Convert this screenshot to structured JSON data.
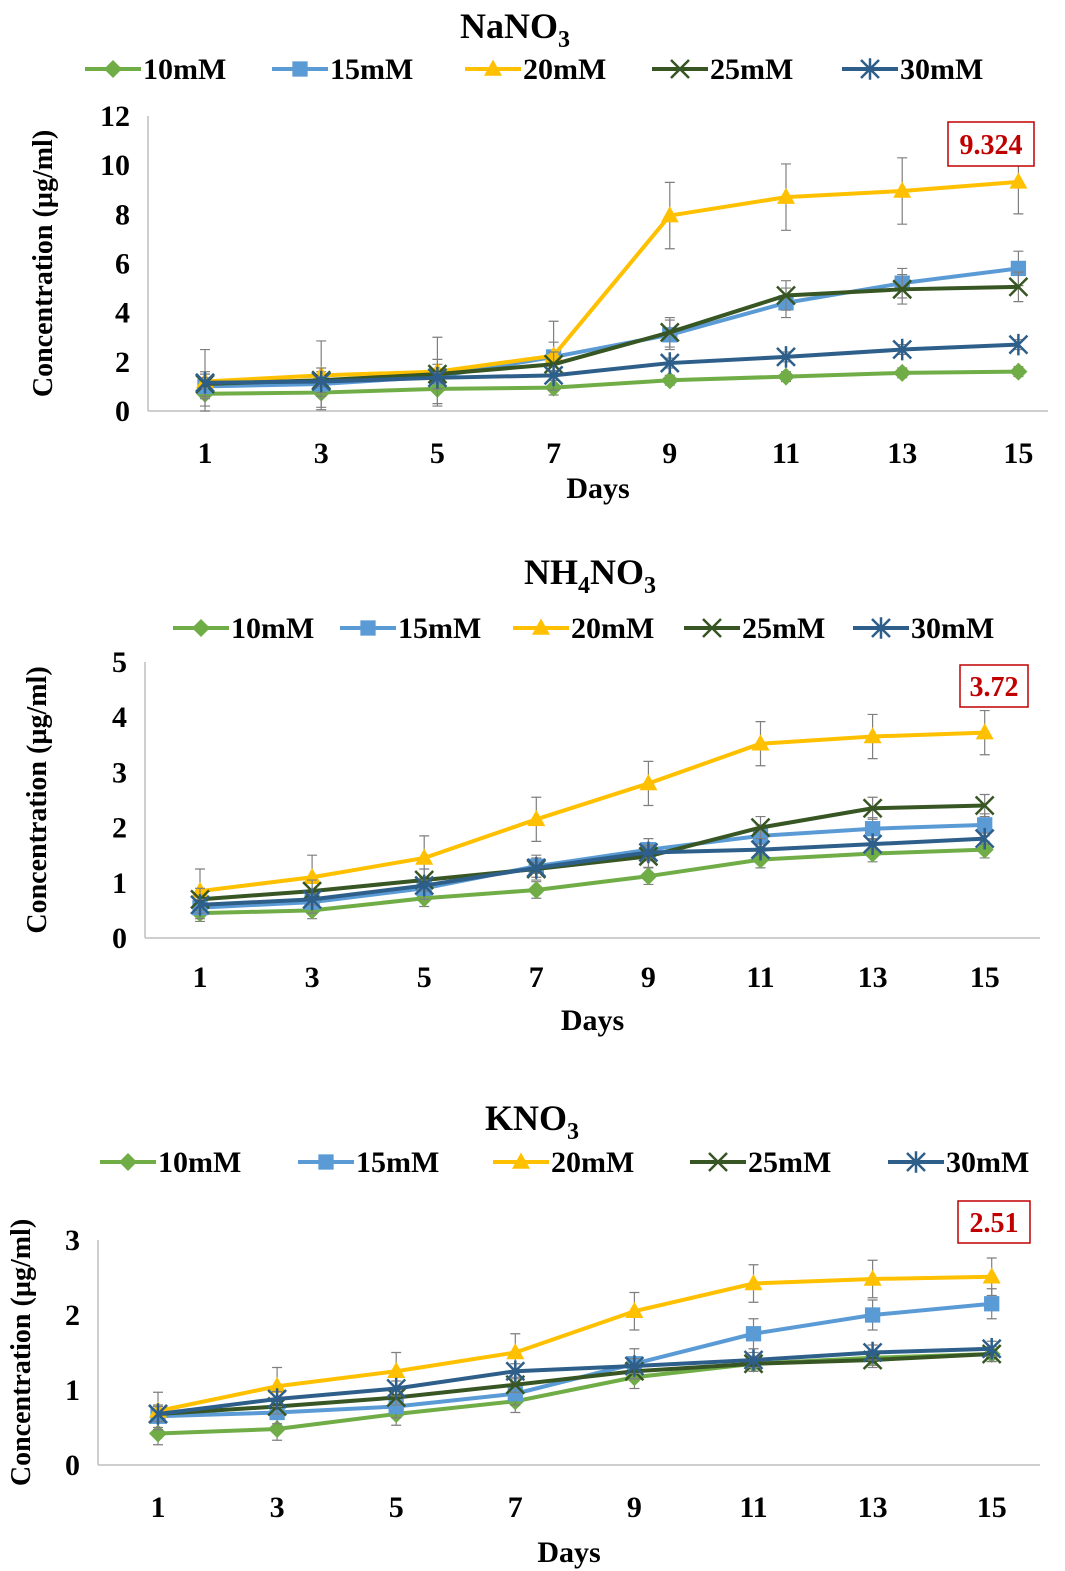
{
  "chart_data": [
    {
      "type": "line",
      "title": "NaNO",
      "title_sub": "3",
      "xlabel": "Days",
      "ylabel": "Concentration (µg/ml)",
      "x": [
        "1",
        "3",
        "5",
        "7",
        "9",
        "11",
        "13",
        "15"
      ],
      "ylim": [
        0,
        12
      ],
      "yticks": [
        "0",
        "2",
        "4",
        "6",
        "8",
        "10",
        "12"
      ],
      "legend_position": "top",
      "annotation": "9.324",
      "series": [
        {
          "name": "10mM",
          "color": "#70ad47",
          "marker": "diamond",
          "values": [
            0.7,
            0.75,
            0.9,
            0.95,
            1.25,
            1.4,
            1.55,
            1.6
          ],
          "errors": [
            0.5,
            0.6,
            0.6,
            0.3,
            0.2,
            0.2,
            0.2,
            0.2
          ]
        },
        {
          "name": "15mM",
          "color": "#5b9bd5",
          "marker": "square",
          "values": [
            1.0,
            1.1,
            1.4,
            2.2,
            3.1,
            4.4,
            5.2,
            5.8
          ],
          "errors": [
            0.5,
            0.5,
            0.5,
            0.6,
            0.6,
            0.6,
            0.6,
            0.7
          ]
        },
        {
          "name": "20mM",
          "color": "#ffc000",
          "marker": "triangle",
          "values": [
            1.2,
            1.45,
            1.6,
            2.25,
            7.95,
            8.7,
            8.95,
            9.32
          ],
          "errors": [
            1.3,
            1.4,
            1.4,
            1.4,
            1.35,
            1.35,
            1.35,
            1.3
          ]
        },
        {
          "name": "25mM",
          "color": "#375623",
          "marker": "x",
          "values": [
            1.1,
            1.25,
            1.5,
            1.9,
            3.2,
            4.7,
            4.95,
            5.05
          ],
          "errors": [
            0.5,
            0.5,
            0.6,
            0.5,
            0.6,
            0.6,
            0.6,
            0.6
          ]
        },
        {
          "name": "30mM",
          "color": "#2e5f8a",
          "marker": "star",
          "values": [
            1.15,
            1.2,
            1.35,
            1.45,
            1.95,
            2.2,
            2.5,
            2.7
          ],
          "errors": [
            0.2,
            0.2,
            0.2,
            0.2,
            0.2,
            0.2,
            0.2,
            0.2
          ]
        }
      ]
    },
    {
      "type": "line",
      "title": "NH",
      "title_sub": "4",
      "title_mid": "NO",
      "title_sub2": "3",
      "xlabel": "Days",
      "ylabel": "Concentration (µg/ml)",
      "x": [
        "1",
        "3",
        "5",
        "7",
        "9",
        "11",
        "13",
        "15"
      ],
      "ylim": [
        0,
        5
      ],
      "yticks": [
        "0",
        "1",
        "2",
        "3",
        "4",
        "5"
      ],
      "legend_position": "top",
      "annotation": "3.72",
      "series": [
        {
          "name": "10mM",
          "color": "#70ad47",
          "marker": "diamond",
          "values": [
            0.45,
            0.5,
            0.72,
            0.87,
            1.12,
            1.42,
            1.53,
            1.6
          ],
          "errors": [
            0.15,
            0.15,
            0.15,
            0.15,
            0.15,
            0.15,
            0.15,
            0.15
          ]
        },
        {
          "name": "15mM",
          "color": "#5b9bd5",
          "marker": "square",
          "values": [
            0.55,
            0.65,
            0.9,
            1.3,
            1.6,
            1.85,
            1.98,
            2.05
          ],
          "errors": [
            0.2,
            0.2,
            0.2,
            0.2,
            0.2,
            0.2,
            0.2,
            0.2
          ]
        },
        {
          "name": "20mM",
          "color": "#ffc000",
          "marker": "triangle",
          "values": [
            0.85,
            1.1,
            1.45,
            2.15,
            2.8,
            3.52,
            3.65,
            3.72
          ],
          "errors": [
            0.4,
            0.4,
            0.4,
            0.4,
            0.4,
            0.4,
            0.4,
            0.4
          ]
        },
        {
          "name": "25mM",
          "color": "#375623",
          "marker": "x",
          "values": [
            0.7,
            0.85,
            1.05,
            1.25,
            1.48,
            2.0,
            2.35,
            2.4
          ],
          "errors": [
            0.2,
            0.2,
            0.2,
            0.2,
            0.2,
            0.2,
            0.2,
            0.2
          ]
        },
        {
          "name": "30mM",
          "color": "#2e5f8a",
          "marker": "star",
          "values": [
            0.6,
            0.7,
            0.95,
            1.27,
            1.55,
            1.6,
            1.7,
            1.8
          ],
          "errors": [
            0.1,
            0.1,
            0.1,
            0.1,
            0.1,
            0.1,
            0.1,
            0.1
          ]
        }
      ]
    },
    {
      "type": "line",
      "title": "KNO",
      "title_sub": "3",
      "xlabel": "Days",
      "ylabel": "Concentration (µg/ml)",
      "x": [
        "1",
        "3",
        "5",
        "7",
        "9",
        "11",
        "13",
        "15"
      ],
      "ylim": [
        0,
        3
      ],
      "yticks": [
        "0",
        "1",
        "2",
        "3"
      ],
      "legend_position": "top",
      "annotation": "2.51",
      "series": [
        {
          "name": "10mM",
          "color": "#70ad47",
          "marker": "diamond",
          "values": [
            0.42,
            0.48,
            0.68,
            0.85,
            1.17,
            1.35,
            1.43,
            1.48
          ],
          "errors": [
            0.15,
            0.15,
            0.15,
            0.15,
            0.15,
            0.1,
            0.1,
            0.1
          ]
        },
        {
          "name": "15mM",
          "color": "#5b9bd5",
          "marker": "square",
          "values": [
            0.65,
            0.7,
            0.78,
            0.95,
            1.35,
            1.75,
            2.0,
            2.15
          ],
          "errors": [
            0.15,
            0.15,
            0.15,
            0.15,
            0.2,
            0.2,
            0.2,
            0.2
          ]
        },
        {
          "name": "20mM",
          "color": "#ffc000",
          "marker": "triangle",
          "values": [
            0.72,
            1.05,
            1.25,
            1.5,
            2.05,
            2.42,
            2.48,
            2.51
          ],
          "errors": [
            0.25,
            0.25,
            0.25,
            0.25,
            0.25,
            0.25,
            0.25,
            0.25
          ]
        },
        {
          "name": "25mM",
          "color": "#375623",
          "marker": "x",
          "values": [
            0.68,
            0.78,
            0.9,
            1.07,
            1.25,
            1.35,
            1.4,
            1.48
          ],
          "errors": [
            0.1,
            0.1,
            0.1,
            0.1,
            0.1,
            0.1,
            0.1,
            0.1
          ]
        },
        {
          "name": "30mM",
          "color": "#2e5f8a",
          "marker": "star",
          "values": [
            0.68,
            0.88,
            1.02,
            1.25,
            1.32,
            1.4,
            1.5,
            1.55
          ],
          "errors": [
            0.1,
            0.1,
            0.1,
            0.1,
            0.1,
            0.1,
            0.1,
            0.1
          ]
        }
      ]
    }
  ]
}
